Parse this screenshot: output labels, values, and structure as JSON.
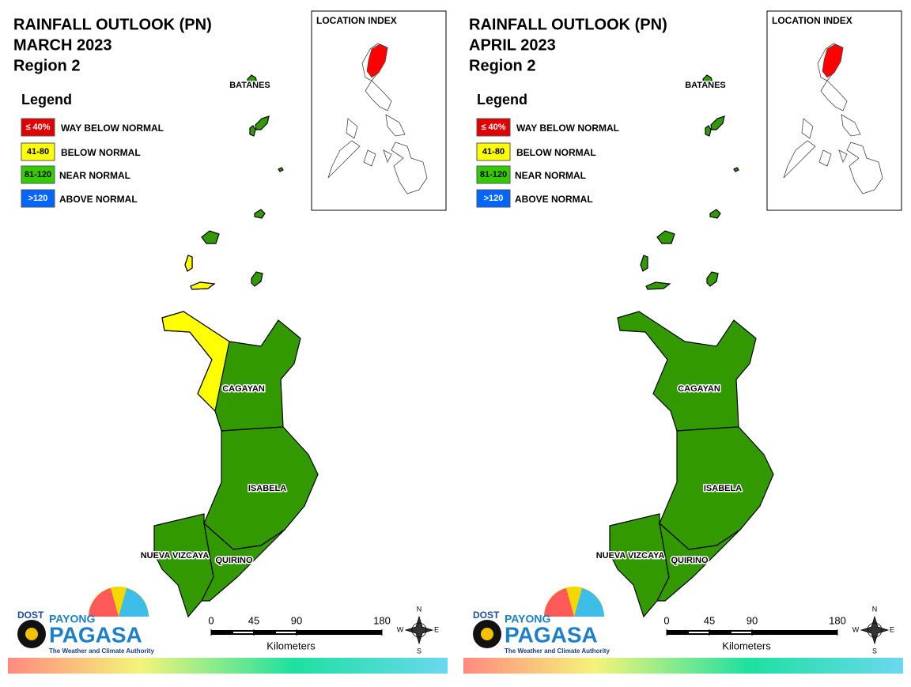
{
  "maps": [
    {
      "title_lines": [
        "RAINFALL OUTLOOK (PN)",
        "MARCH 2023",
        "Region 2"
      ],
      "legend": {
        "title": "Legend",
        "items": [
          {
            "label": "≤ 40%",
            "description": "WAY BELOW NORMAL",
            "color": "#e00000"
          },
          {
            "label": "41-80",
            "description": "BELOW NORMAL",
            "color": "#ffff00"
          },
          {
            "label": "81-120",
            "description": "NEAR NORMAL",
            "color": "#33cc00"
          },
          {
            "label": ">120",
            "description": "ABOVE NORMAL",
            "color": "#0066ff"
          }
        ]
      },
      "location_index": {
        "title": "LOCATION INDEX",
        "highlight_color": "#ff0000"
      },
      "provinces": [
        {
          "name": "BATANES",
          "color": "#339900"
        },
        {
          "name": "CAGAYAN",
          "color": "#339900"
        },
        {
          "name": "ISABELA",
          "color": "#339900"
        },
        {
          "name": "NUEVA VIZCAYA",
          "color": "#339900"
        },
        {
          "name": "QUIRINO",
          "color": "#339900"
        }
      ],
      "partial_areas": [
        {
          "province": "CAGAYAN",
          "color": "#ffff00"
        }
      ],
      "scale": {
        "ticks": [
          0,
          45,
          90,
          180
        ],
        "unit": "Kilometers"
      },
      "compass": [
        "N",
        "E",
        "S",
        "W"
      ],
      "logo": {
        "agency": "DOST",
        "brand_top": "PAYONG",
        "brand": "PAGASA",
        "tagline": "The Weather and Climate Authority"
      }
    },
    {
      "title_lines": [
        "RAINFALL OUTLOOK (PN)",
        "APRIL 2023",
        "Region 2"
      ],
      "legend": {
        "title": "Legend",
        "items": [
          {
            "label": "≤ 40%",
            "description": "WAY BELOW NORMAL",
            "color": "#e00000"
          },
          {
            "label": "41-80",
            "description": "BELOW NORMAL",
            "color": "#ffff00"
          },
          {
            "label": "81-120",
            "description": "NEAR NORMAL",
            "color": "#33cc00"
          },
          {
            "label": ">120",
            "description": "ABOVE NORMAL",
            "color": "#0066ff"
          }
        ]
      },
      "location_index": {
        "title": "LOCATION INDEX",
        "highlight_color": "#ff0000"
      },
      "provinces": [
        {
          "name": "BATANES",
          "color": "#339900"
        },
        {
          "name": "CAGAYAN",
          "color": "#339900"
        },
        {
          "name": "ISABELA",
          "color": "#339900"
        },
        {
          "name": "NUEVA VIZCAYA",
          "color": "#339900"
        },
        {
          "name": "QUIRINO",
          "color": "#339900"
        }
      ],
      "partial_areas": [],
      "scale": {
        "ticks": [
          0,
          45,
          90,
          180
        ],
        "unit": "Kilometers"
      },
      "compass": [
        "N",
        "E",
        "S",
        "W"
      ],
      "logo": {
        "agency": "DOST",
        "brand_top": "PAYONG",
        "brand": "PAGASA",
        "tagline": "The Weather and Climate Authority"
      }
    }
  ]
}
